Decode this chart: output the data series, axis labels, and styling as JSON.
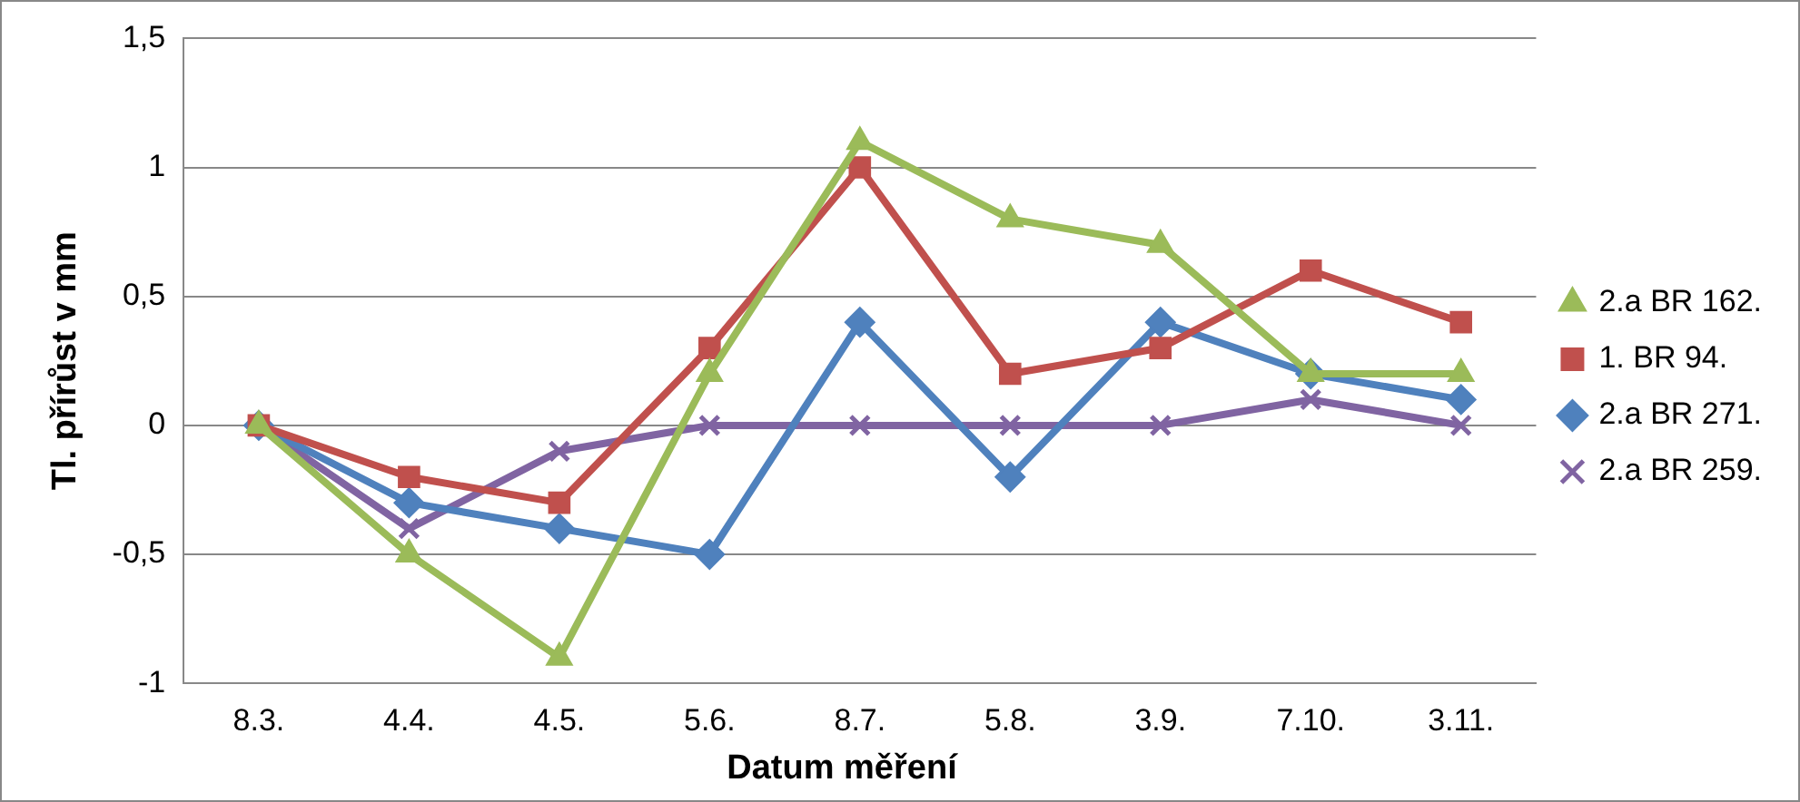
{
  "chart_data": {
    "type": "line",
    "xlabel": "Datum měření",
    "ylabel": "Tl. přírůst v mm",
    "categories": [
      "8.3.",
      "4.4.",
      "4.5.",
      "5.6.",
      "8.7.",
      "5.8.",
      "3.9.",
      "7.10.",
      "3.11."
    ],
    "series": [
      {
        "name": "2.a BR 162.",
        "color": "#9bbb59",
        "marker": "triangle",
        "values": [
          0,
          -0.5,
          -0.9,
          0.2,
          1.1,
          0.8,
          0.7,
          0.2,
          0.2
        ]
      },
      {
        "name": "1. BR 94.",
        "color": "#c0504d",
        "marker": "square",
        "values": [
          0,
          -0.2,
          -0.3,
          0.3,
          1.0,
          0.2,
          0.3,
          0.6,
          0.4
        ]
      },
      {
        "name": "2.a BR 271.",
        "color": "#4f81bd",
        "marker": "diamond",
        "values": [
          0,
          -0.3,
          -0.4,
          -0.5,
          0.4,
          -0.2,
          0.4,
          0.2,
          0.1
        ]
      },
      {
        "name": "2.a BR 259.",
        "color": "#8064a2",
        "marker": "cross",
        "values": [
          0,
          -0.4,
          -0.1,
          0,
          0,
          0,
          0,
          0.1,
          0
        ]
      }
    ],
    "ylim": [
      -1,
      1.5
    ],
    "yticks": [
      -1,
      {
        "value": -0.5,
        "label": "-0,5"
      },
      0,
      {
        "value": 0.5,
        "label": "0,5"
      },
      1,
      {
        "value": 1.5,
        "label": "1,5"
      }
    ],
    "grid": "y",
    "legend": "right",
    "line_style": "solid"
  }
}
